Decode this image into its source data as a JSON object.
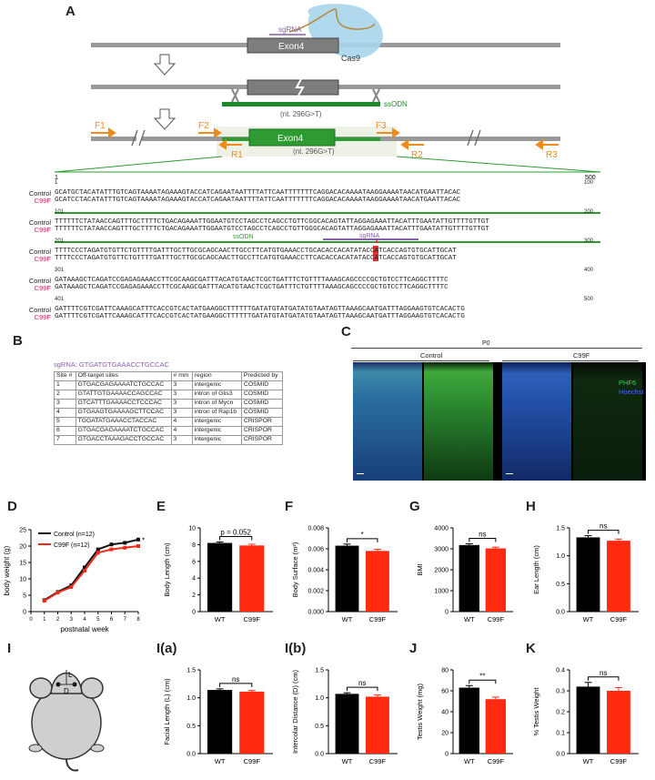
{
  "panel_labels": {
    "A": "A",
    "B": "B",
    "C": "C",
    "D": "D",
    "E": "E",
    "F": "F",
    "G": "G",
    "H": "H",
    "I": "I",
    "Ia": "I(a)",
    "Ib": "I(b)",
    "J": "J",
    "K": "K"
  },
  "schematic": {
    "sgrna": "sgRNA",
    "exon4": "Exon4",
    "cas9": "Cas9",
    "ssodn": "ssODN",
    "mutation": "(nt. 296G>T)",
    "primers": {
      "F1": "F1",
      "F2": "F2",
      "F3": "F3",
      "R1": "R1",
      "R2": "R2",
      "R3": "R3"
    },
    "ruler_start": "1",
    "ruler_end": "500"
  },
  "alignment": {
    "control_label": "Control",
    "mutant_label": "C99F",
    "ssodn_label": "ssODN",
    "sgrna_label": "sgRNA",
    "blocks": [
      {
        "start": "1",
        "end": "100",
        "control": "GCATGCTACATATTTGTCAGTAAAATAGAAAGTACCATCAGAATAATTTTATTCAATTTTTTTCAGGACACAAAATAAGGAAAATAACATGAATTACAC",
        "mutant": "GCATCCTACATATTTGTCAGTAAAATAGAAAGTACCATCAGAATAATTTTATTCAATTTTTTTCAGGACACAAAATAAGGAAAATAACATGAATTACAC"
      },
      {
        "start": "101",
        "end": "200",
        "control": "TTTTTTCTATAACCAGTTTGCTTTTCTGACAGAAATTGGAATGTCCTAGCCTCAGCCTGTTCGGCACAGTATTAGGAGAAATTACATTTGAATATTGTTTTGTTGT",
        "mutant": "TTTTTTCTATAACCAGTTTGCTTTTCTGACAGAAATTGGAATGTCCTAGCCTCAGCCTGTTGGGCACAGTATTAGGAGAAATTACATTTGAATATTGTTTTGTTGT"
      },
      {
        "start": "201",
        "end": "300",
        "control": "TTTTCCCTAGATGTGTTCTGTTTTGATTTGCTTGCGCAGCAACTTGCCTTCATGTGAAACCTGCACACCACATATACCATCACCAGTGTGCATTGCAT",
        "mutant": "TTTTCCCTAGATGTGTTCTGTTTTGATTTGCTTGCGCAGCAACTTGCCTTCATGTGAAACCTTCACACCACATATACCATCACCAGTGTGCATTGCAT"
      },
      {
        "start": "301",
        "end": "400",
        "control": "GATAAAGCTCAGATCCGAGAGAAACCTTCGCAAGCGATTTACATGTAACTCGCTGATTTCTGTTTTAAAGCAGCCCCGCTGTCCTTCAGGCTTTTC",
        "mutant": "GATAAAGCTCAGATCCGAGAGAAACCTTCGCAAGCGATTTACATGTAACTCGCTGATTTCTGTTTTAAAGCAGCCCCGCTGTCCTTCAGGCTTTTC"
      },
      {
        "start": "401",
        "end": "500",
        "control": "GATTTTCGTCGATTCAAAGCATTTCACCGTCACTATGAAGGCTTTTTTGATATGTATGATATGTAATAGTTAAAGCAATGATTTAGGAAGTGTCACACTG",
        "mutant": "GATTTTCGTCGATTCAAAGCATTTCACCGTCACTATGAAGGCTTTTTTGATATGTATGATATGTAATAGTTAAAGCAATGATTTAGGAAGTGTCACACTG"
      }
    ]
  },
  "offtarget": {
    "sgrna_line": "sgRNA: GTGATGTGAAACCTGCCAC",
    "headers": [
      "Site #",
      "Off-target sites",
      "# mm",
      "region",
      "Predicted by"
    ],
    "rows": [
      [
        "1",
        "GTGACGAGAAAATCTGCCAC",
        "3",
        "intergenic",
        "COSMID"
      ],
      [
        "2",
        "GTATTGTGAAAACCAGCCAC",
        "3",
        "intron of Glis3",
        "COSMID"
      ],
      [
        "3",
        "GTCATTTGAAAACCTCCCAC",
        "3",
        "intron of Mycn",
        "COSMID"
      ],
      [
        "4",
        "GTGAAGTGAAAAGCTTCCAC",
        "3",
        "intron of Rap1b",
        "COSMID"
      ],
      [
        "5",
        "TGGATATGAAACCTACCAC",
        "4",
        "intergenic",
        "CRISPOR"
      ],
      [
        "6",
        "GTGACGAGAAAATCTGCCAC",
        "4",
        "intergenic",
        "CRISPOR"
      ],
      [
        "7",
        "GTGACCTAAAGACCTGCCAC",
        "3",
        "intergenic",
        "CRISPOR"
      ]
    ]
  },
  "micrograph": {
    "age": "P0",
    "control": "Control",
    "mutant": "C99F",
    "legend1": "PHF6",
    "legend2": "Hoechst",
    "colors": {
      "phf6": "#2bd64a",
      "hoechst": "#4466ff"
    }
  },
  "mouse_labels": {
    "L": "L",
    "D": "D"
  },
  "chart_data": [
    {
      "id": "D",
      "type": "line",
      "xlabel": "postnatal week",
      "ylabel": "body weight (g)",
      "xlim": [
        0,
        8
      ],
      "ylim": [
        0,
        25
      ],
      "xticks": [
        "0",
        "1",
        "2",
        "3",
        "4",
        "5",
        "6",
        "7",
        "8"
      ],
      "yticks": [
        "0",
        "5",
        "10",
        "15",
        "20",
        "25"
      ],
      "x": [
        1,
        2,
        3,
        4,
        5,
        6,
        7,
        8
      ],
      "series": [
        {
          "name": "Control (n=12)",
          "color": "#111111",
          "values": [
            3.5,
            6.0,
            8.0,
            13.5,
            19.0,
            20.5,
            21.0,
            22.0
          ]
        },
        {
          "name": "C99F (n=12)",
          "color": "#ee2a1a",
          "values": [
            3.3,
            5.8,
            7.5,
            12.5,
            18.0,
            19.0,
            19.5,
            20.0
          ]
        }
      ],
      "annotation": "*",
      "legend": "top-left"
    },
    {
      "id": "E",
      "type": "bar",
      "categories": [
        "WT",
        "C99F"
      ],
      "values": [
        8.2,
        7.9
      ],
      "errors": [
        0.12,
        0.15
      ],
      "ylabel": "Body Length (cm)",
      "ylim": [
        0,
        10
      ],
      "yticks": [
        "0",
        "2",
        "4",
        "6",
        "8",
        "10"
      ],
      "sig": "p = 0.052",
      "colors": [
        "#000000",
        "#ff2a10"
      ]
    },
    {
      "id": "F",
      "type": "bar",
      "categories": [
        "WT",
        "C99F"
      ],
      "values": [
        0.0063,
        0.0058
      ],
      "errors": [
        0.00015,
        0.00015
      ],
      "ylabel": "Body Surface (m²)",
      "ylim": [
        0,
        0.008
      ],
      "yticks": [
        "0.000",
        "0.002",
        "0.004",
        "0.006",
        "0.008"
      ],
      "sig": "*",
      "colors": [
        "#000000",
        "#ff2a10"
      ]
    },
    {
      "id": "G",
      "type": "bar",
      "categories": [
        "WT",
        "C99F"
      ],
      "values": [
        3180,
        3020
      ],
      "errors": [
        60,
        60
      ],
      "ylabel": "BMI",
      "ylim": [
        0,
        4000
      ],
      "yticks": [
        "0",
        "1000",
        "2000",
        "3000",
        "4000"
      ],
      "sig": "ns",
      "colors": [
        "#000000",
        "#ff2a10"
      ]
    },
    {
      "id": "H",
      "type": "bar",
      "categories": [
        "WT",
        "C99F"
      ],
      "values": [
        1.33,
        1.27
      ],
      "errors": [
        0.03,
        0.03
      ],
      "ylabel": "Ear Length (cm)",
      "ylim": [
        0,
        1.5
      ],
      "yticks": [
        "0.0",
        "0.5",
        "1.0",
        "1.5"
      ],
      "sig": "ns",
      "colors": [
        "#000000",
        "#ff2a10"
      ]
    },
    {
      "id": "Ia",
      "type": "bar",
      "categories": [
        "WT",
        "C99F"
      ],
      "values": [
        1.14,
        1.11
      ],
      "errors": [
        0.02,
        0.02
      ],
      "ylabel": "Facial Length (L) (cm)",
      "ylim": [
        0,
        1.5
      ],
      "yticks": [
        "0.0",
        "0.5",
        "1.0",
        "1.5"
      ],
      "sig": "ns",
      "colors": [
        "#000000",
        "#ff2a10"
      ]
    },
    {
      "id": "Ib",
      "type": "bar",
      "categories": [
        "WT",
        "C99F"
      ],
      "values": [
        1.07,
        1.02
      ],
      "errors": [
        0.02,
        0.03
      ],
      "ylabel": "Intercolar Distance (D) (cm)",
      "ylim": [
        0,
        1.5
      ],
      "yticks": [
        "0.0",
        "0.5",
        "1.0",
        "1.5"
      ],
      "sig": "ns",
      "colors": [
        "#000000",
        "#ff2a10"
      ]
    },
    {
      "id": "J",
      "type": "bar",
      "categories": [
        "WT",
        "C99F"
      ],
      "values": [
        63,
        52
      ],
      "errors": [
        2,
        2
      ],
      "ylabel": "Testis Weight (mg)",
      "ylim": [
        0,
        80
      ],
      "yticks": [
        "0",
        "20",
        "40",
        "60",
        "80"
      ],
      "sig": "**",
      "colors": [
        "#000000",
        "#ff2a10"
      ]
    },
    {
      "id": "K",
      "type": "bar",
      "categories": [
        "WT",
        "C99F"
      ],
      "values": [
        0.32,
        0.3
      ],
      "errors": [
        0.02,
        0.015
      ],
      "ylabel": "% Testis Weight",
      "ylim": [
        0,
        0.4
      ],
      "yticks": [
        "0.0",
        "0.1",
        "0.2",
        "0.3",
        "0.4"
      ],
      "sig": "ns",
      "colors": [
        "#000000",
        "#ff2a10"
      ]
    }
  ]
}
